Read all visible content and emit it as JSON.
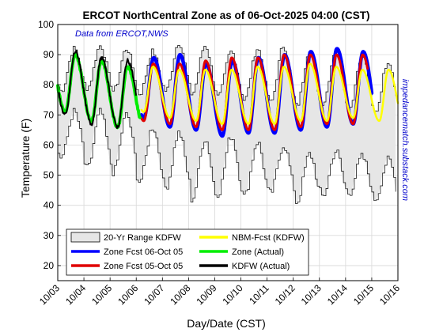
{
  "colors": {
    "range_fill": "#e6e6e6",
    "range_edge": "#000000",
    "zone_fcst_06": "#0000ff",
    "zone_fcst_05": "#e00000",
    "nbm_fcst": "#ffff00",
    "zone_actual": "#00ee00",
    "kdfw_actual": "#000000",
    "annotation_text": "#0000cc",
    "grid": "#d9d9d9"
  },
  "chart_data": {
    "type": "line",
    "title": "ERCOT NorthCentral Zone as of 06-Oct-2025 04:00 (CST)",
    "xlabel": "Day/Date (CST)",
    "ylabel": "Temperature (F)",
    "ylim": [
      15,
      100
    ],
    "yticks": [
      20,
      30,
      40,
      50,
      60,
      70,
      80,
      90,
      100
    ],
    "xlim": [
      0,
      13
    ],
    "xtick_labels": [
      "10/03",
      "10/04",
      "10/05",
      "10/06",
      "10/07",
      "10/08",
      "10/09",
      "10/10",
      "10/11",
      "10/12",
      "10/13",
      "10/14",
      "10/15",
      "10/16"
    ],
    "grid": true,
    "legend_position": "bottom-left",
    "annotations": {
      "data_source": "Data from ERCOT,NWS",
      "watermark": "impedancematch.substack.com"
    },
    "legend": [
      {
        "key": "range",
        "label": "20-Yr Range KDFW"
      },
      {
        "key": "nbm",
        "label": "NBM-Fcst (KDFW)"
      },
      {
        "key": "fcst06",
        "label": "Zone Fcst 06-Oct 05"
      },
      {
        "key": "actual",
        "label": "Zone (Actual)"
      },
      {
        "key": "fcst05",
        "label": "Zone Fcst 05-Oct 05"
      },
      {
        "key": "kdfw",
        "label": "KDFW (Actual)"
      }
    ],
    "range_kdfw": {
      "x": [
        0,
        13
      ],
      "upper_daily_high": [
        92,
        93,
        92,
        91,
        94,
        93,
        91,
        92,
        93,
        92,
        92,
        90,
        88
      ],
      "upper_daily_low": [
        78,
        79,
        78,
        77,
        78,
        77,
        76,
        75,
        74,
        73,
        74,
        72,
        71
      ],
      "lower_daily_high": [
        71,
        71,
        70,
        66,
        64,
        62,
        63,
        61,
        60,
        57,
        58,
        56,
        55
      ],
      "lower_daily_low": [
        56,
        52,
        51,
        48,
        46,
        42,
        44,
        43,
        44,
        41,
        43,
        44,
        42
      ]
    },
    "series": [
      {
        "key": "fcst06",
        "name": "Zone Fcst 06-Oct 05",
        "x_start": 3.2,
        "x_end": 12.0,
        "daily_lows": [
          69,
          66,
          65,
          63,
          64,
          64,
          65,
          66,
          67,
          66
        ],
        "daily_highs": [
          89,
          90,
          87,
          88,
          89,
          90,
          91,
          92,
          91
        ]
      },
      {
        "key": "fcst05",
        "name": "Zone Fcst 05-Oct 05",
        "x_start": 3.2,
        "x_end": 11.85,
        "daily_lows": [
          68,
          67,
          66,
          65,
          65,
          65,
          66,
          67,
          67,
          67
        ],
        "daily_highs": [
          87,
          87,
          88,
          89,
          89,
          90,
          90,
          90,
          90
        ]
      },
      {
        "key": "nbm",
        "name": "NBM-Fcst (KDFW)",
        "x_start": 3.2,
        "x_end": 13.0,
        "daily_lows": [
          71,
          69,
          68,
          67,
          67,
          67,
          68,
          68,
          69,
          68,
          66
        ],
        "daily_highs": [
          86,
          85,
          85,
          85,
          86,
          86,
          87,
          86,
          85,
          85
        ]
      },
      {
        "key": "actual",
        "name": "Zone (Actual)",
        "x_start": 0.0,
        "x_end": 3.15,
        "daily_lows": [
          71,
          68,
          66,
          66,
          70
        ],
        "daily_highs": [
          90,
          88,
          86
        ]
      },
      {
        "key": "kdfw",
        "name": "KDFW (Actual)",
        "x_start": 0.05,
        "x_end": 3.0,
        "daily_lows": [
          70,
          67,
          66,
          67,
          72
        ],
        "daily_highs": [
          91,
          89,
          88
        ]
      }
    ]
  }
}
